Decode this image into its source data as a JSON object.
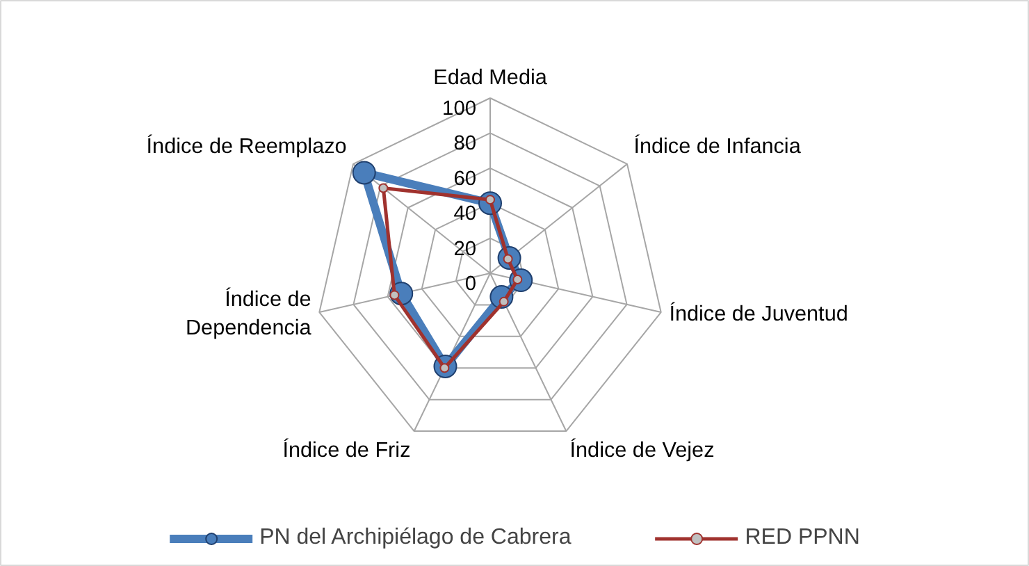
{
  "chart_data": {
    "type": "radar",
    "categories": [
      "Edad Media",
      "Índice de Infancia",
      "Índice de Juventud",
      "Índice de Vejez",
      "Índice de Friz",
      "Índice de Dependencia",
      "Índice de Reemplazo"
    ],
    "series": [
      {
        "name": "PN del Archipiélago de Cabrera",
        "color": "#4a7ebb",
        "values": [
          40,
          14,
          18,
          15,
          59,
          52,
          92
        ]
      },
      {
        "name": "RED PPNN",
        "color": "#a0322e",
        "values": [
          42,
          13,
          16,
          18,
          60,
          56,
          78
        ]
      }
    ],
    "ylim": [
      0,
      100
    ],
    "yticks": [
      0,
      20,
      40,
      60,
      80,
      100
    ],
    "grid": true,
    "legend": "bottom",
    "marker": "circle"
  }
}
